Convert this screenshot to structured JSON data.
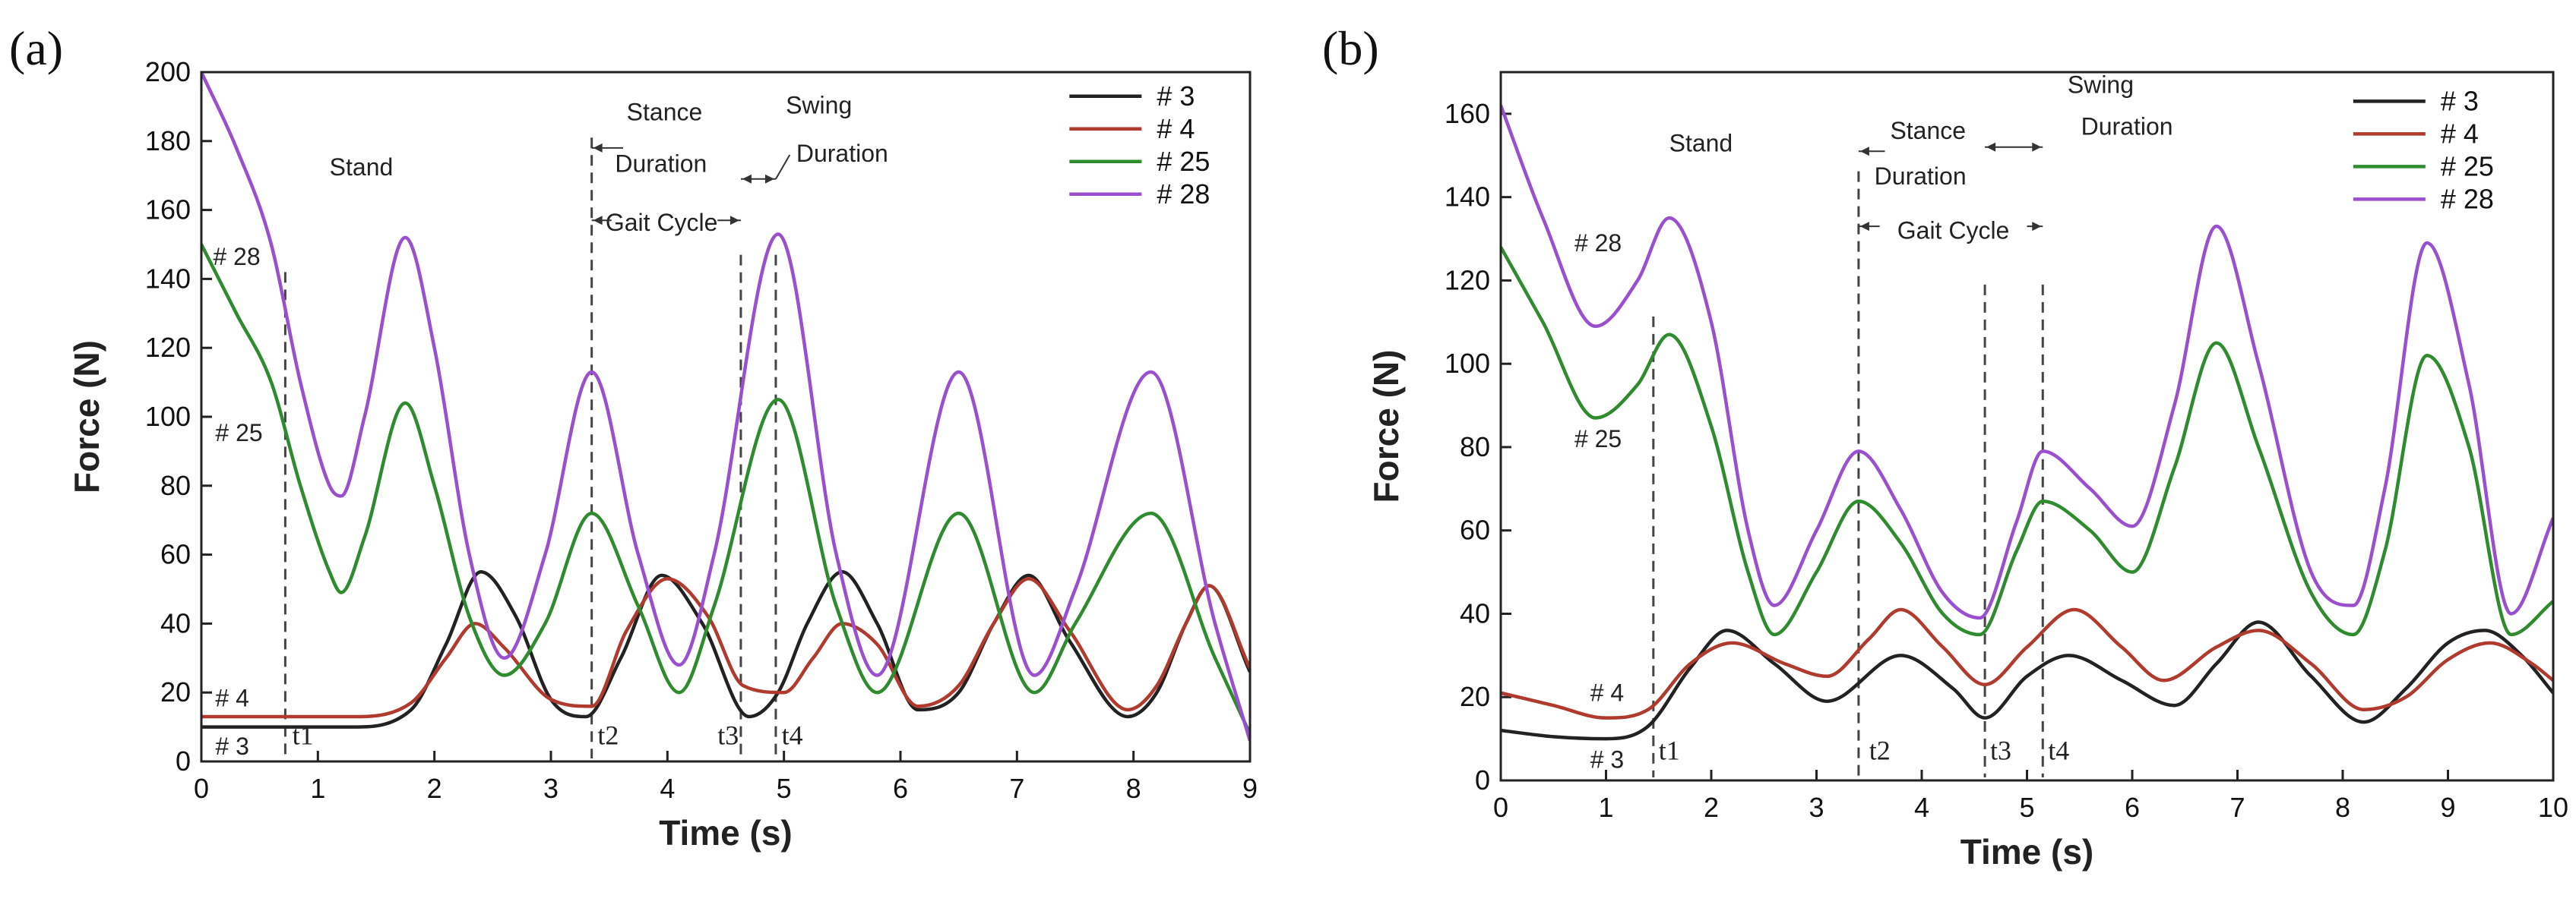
{
  "chart_data": [
    {
      "type": "line",
      "panel_label": "(a)",
      "xlabel": "Time (s)",
      "ylabel": "Force (N)",
      "xlim": [
        0,
        9
      ],
      "ylim": [
        0,
        200
      ],
      "xticks": [
        0,
        1,
        2,
        3,
        4,
        5,
        6,
        7,
        8,
        9
      ],
      "yticks": [
        0,
        20,
        40,
        60,
        80,
        100,
        120,
        140,
        160,
        180,
        200
      ],
      "legend_position": "top-right",
      "series": [
        {
          "name": "# 3",
          "color": "#222222",
          "x": [
            0,
            0.7,
            1.3,
            1.8,
            2.1,
            2.4,
            2.7,
            3.0,
            3.3,
            3.6,
            3.95,
            4.3,
            4.7,
            4.95,
            5.2,
            5.5,
            5.8,
            6.15,
            6.5,
            6.8,
            7.1,
            7.45,
            7.95,
            8.2,
            8.45,
            8.65,
            9.0
          ],
          "y": [
            10,
            10,
            10,
            15,
            34,
            55,
            42,
            18,
            13,
            30,
            54,
            40,
            13,
            20,
            40,
            55,
            40,
            15,
            20,
            40,
            54,
            35,
            13,
            20,
            40,
            51,
            26
          ]
        },
        {
          "name": "# 4",
          "color": "#b03a2e",
          "x": [
            0,
            0.7,
            1.3,
            1.8,
            2.1,
            2.35,
            2.6,
            3.0,
            3.35,
            3.65,
            4.0,
            4.35,
            4.65,
            5.0,
            5.25,
            5.5,
            5.8,
            6.15,
            6.5,
            6.8,
            7.1,
            7.45,
            7.95,
            8.2,
            8.45,
            8.65,
            9.0
          ],
          "y": [
            13,
            13,
            13,
            17,
            30,
            40,
            33,
            18,
            16,
            38,
            53,
            42,
            22,
            20,
            30,
            40,
            34,
            16,
            22,
            40,
            53,
            38,
            15,
            22,
            40,
            51,
            27
          ]
        },
        {
          "name": "# 25",
          "color": "#2e8b2e",
          "x": [
            0,
            0.3,
            0.6,
            0.85,
            1.1,
            1.2,
            1.4,
            1.75,
            2.0,
            2.3,
            2.6,
            2.95,
            3.35,
            3.75,
            4.1,
            4.4,
            4.95,
            5.45,
            5.8,
            6.5,
            7.15,
            7.5,
            8.15,
            8.7,
            9.0
          ],
          "y": [
            150,
            130,
            110,
            80,
            55,
            49,
            65,
            104,
            80,
            42,
            25,
            40,
            72,
            45,
            20,
            45,
            105,
            45,
            20,
            72,
            20,
            40,
            72,
            30,
            8
          ]
        },
        {
          "name": "# 28",
          "color": "#9a4fcf",
          "x": [
            0,
            0.3,
            0.6,
            0.85,
            1.1,
            1.2,
            1.4,
            1.75,
            2.0,
            2.3,
            2.6,
            2.95,
            3.35,
            3.75,
            4.1,
            4.4,
            4.95,
            5.45,
            5.8,
            6.5,
            7.15,
            7.5,
            8.15,
            8.7,
            9.0
          ],
          "y": [
            200,
            178,
            150,
            110,
            80,
            77,
            100,
            152,
            120,
            60,
            30,
            60,
            113,
            60,
            28,
            60,
            153,
            60,
            25,
            113,
            25,
            50,
            113,
            40,
            6
          ]
        }
      ],
      "annotations": {
        "stand": "Stand",
        "stance_line1": "Stance",
        "stance_line2": "Duration",
        "swing_line1": "Swing",
        "swing_line2": "Duration",
        "gait_cycle": "Gait Cycle",
        "t1": "t1",
        "t2": "t2",
        "t3": "t3",
        "t4": "t4",
        "lbl3": "# 3",
        "lbl4": "# 4",
        "lbl25": "# 25",
        "lbl28": "# 28"
      },
      "event_times": [
        0.72,
        3.35,
        4.63,
        4.93
      ]
    },
    {
      "type": "line",
      "panel_label": "(b)",
      "xlabel": "Time (s)",
      "ylabel": "Force (N)",
      "xlim": [
        0,
        10
      ],
      "ylim": [
        0,
        170
      ],
      "xticks": [
        0,
        1,
        2,
        3,
        4,
        5,
        6,
        7,
        8,
        9,
        10
      ],
      "yticks": [
        0,
        20,
        40,
        60,
        80,
        100,
        120,
        140,
        160
      ],
      "legend_position": "top-right",
      "series": [
        {
          "name": "# 3",
          "color": "#222222",
          "x": [
            0,
            0.5,
            1.0,
            1.4,
            1.8,
            2.15,
            2.6,
            3.1,
            3.8,
            4.3,
            4.6,
            5.0,
            5.4,
            5.9,
            6.4,
            6.8,
            7.2,
            7.7,
            8.2,
            8.6,
            9.0,
            9.35,
            9.7,
            10.0
          ],
          "y": [
            12,
            10.5,
            10,
            13,
            27,
            36,
            28,
            19,
            30,
            22,
            15,
            25,
            30,
            24,
            18,
            28,
            38,
            25,
            14,
            22,
            33,
            36,
            30,
            21
          ]
        },
        {
          "name": "# 4",
          "color": "#b03a2e",
          "x": [
            0,
            0.5,
            1.0,
            1.4,
            1.8,
            2.2,
            2.7,
            3.1,
            3.5,
            3.8,
            4.2,
            4.6,
            5.0,
            5.45,
            5.9,
            6.3,
            6.8,
            7.2,
            7.7,
            8.2,
            8.6,
            9.0,
            9.4,
            9.8,
            10.0
          ],
          "y": [
            21,
            18,
            15,
            17,
            28,
            33,
            28,
            25,
            34,
            41,
            32,
            23,
            32,
            41,
            32,
            24,
            32,
            36,
            28,
            17,
            20,
            29,
            33,
            28,
            24
          ]
        },
        {
          "name": "# 25",
          "color": "#2e8b2e",
          "x": [
            0,
            0.4,
            0.9,
            1.3,
            1.6,
            2.0,
            2.35,
            2.6,
            3.0,
            3.4,
            3.8,
            4.2,
            4.55,
            4.9,
            5.15,
            5.6,
            6.0,
            6.4,
            6.8,
            7.2,
            7.7,
            8.1,
            8.4,
            8.8,
            9.2,
            9.6,
            10.0
          ],
          "y": [
            128,
            110,
            87,
            95,
            107,
            85,
            50,
            35,
            50,
            67,
            57,
            40,
            35,
            55,
            67,
            60,
            50,
            75,
            105,
            80,
            45,
            35,
            55,
            102,
            80,
            35,
            43
          ]
        },
        {
          "name": "# 28",
          "color": "#9a4fcf",
          "x": [
            0,
            0.4,
            0.9,
            1.3,
            1.6,
            2.0,
            2.35,
            2.6,
            3.0,
            3.4,
            3.8,
            4.2,
            4.55,
            4.9,
            5.15,
            5.6,
            6.0,
            6.4,
            6.8,
            7.2,
            7.7,
            8.1,
            8.4,
            8.8,
            9.2,
            9.6,
            10.0
          ],
          "y": [
            162,
            135,
            109,
            120,
            135,
            110,
            60,
            42,
            60,
            79,
            65,
            45,
            39,
            62,
            79,
            70,
            61,
            90,
            133,
            100,
            50,
            42,
            70,
            129,
            95,
            40,
            63
          ]
        }
      ],
      "annotations": {
        "stand": "Stand",
        "stance_line1": "Stance",
        "stance_line2": "Duration",
        "swing_line1": "Swing",
        "swing_line2": "Duration",
        "gait_cycle": "Gait Cycle",
        "t1": "t1",
        "t2": "t2",
        "t3": "t3",
        "t4": "t4",
        "lbl3": "# 3",
        "lbl4": "# 4",
        "lbl25": "# 25",
        "lbl28": "# 28"
      },
      "event_times": [
        1.45,
        3.4,
        4.6,
        5.15
      ]
    }
  ]
}
